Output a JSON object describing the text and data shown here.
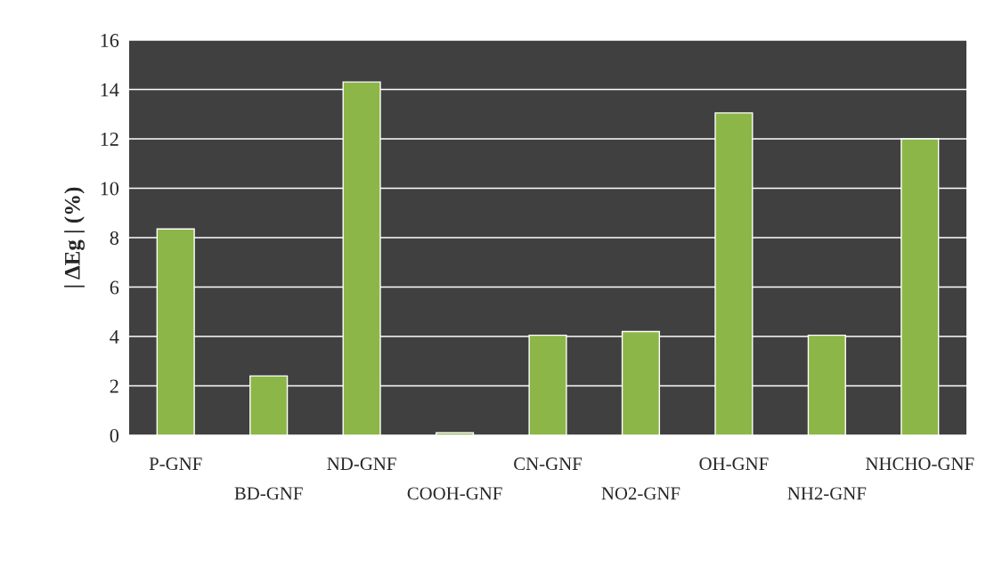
{
  "chart_data": {
    "type": "bar",
    "ylabel": "| ΔEg | (%)",
    "categories": [
      "P-GNF",
      "BD-GNF",
      "ND-GNF",
      "COOH-GNF",
      "CN-GNF",
      "NO2-GNF",
      "OH-GNF",
      "NH2-GNF",
      "NHCHO-GNF"
    ],
    "values": [
      8.35,
      2.4,
      14.3,
      0.1,
      4.05,
      4.2,
      13.05,
      4.05,
      12.0
    ],
    "color": "#8cb648",
    "ylim": [
      0,
      16
    ],
    "yticks": [
      0,
      2,
      4,
      6,
      8,
      10,
      12,
      14,
      16
    ],
    "grid": "y"
  }
}
